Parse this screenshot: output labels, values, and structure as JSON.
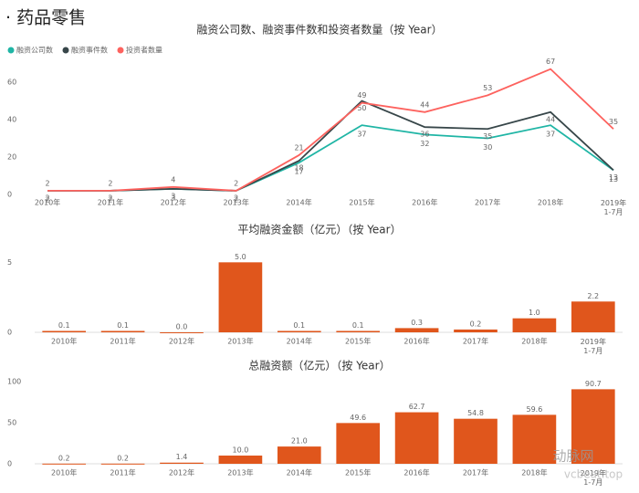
{
  "page_title": "· 药品零售",
  "chart_data": [
    {
      "type": "line",
      "title": "融资公司数、融资事件数和投资者数量（按 Year）",
      "categories": [
        "2010年",
        "2011年",
        "2012年",
        "2013年",
        "2014年",
        "2015年",
        "2016年",
        "2017年",
        "2018年",
        "2019年\n1-7月"
      ],
      "series": [
        {
          "name": "融资公司数",
          "color": "#1fb5a5",
          "values": [
            2,
            2,
            3,
            2,
            17,
            37,
            32,
            30,
            37,
            13
          ]
        },
        {
          "name": "融资事件数",
          "color": "#374649",
          "values": [
            2,
            2,
            3,
            2,
            18,
            50,
            36,
            35,
            44,
            13
          ]
        },
        {
          "name": "投资者数量",
          "color": "#fd625e",
          "values": [
            2,
            2,
            4,
            2,
            21,
            49,
            44,
            53,
            67,
            35
          ]
        }
      ],
      "ylim": [
        0,
        70
      ],
      "yticks": [
        0,
        20,
        40,
        60
      ]
    },
    {
      "type": "bar",
      "title": "平均融资金额（亿元）（按 Year）",
      "categories": [
        "2010年",
        "2011年",
        "2012年",
        "2013年",
        "2014年",
        "2015年",
        "2016年",
        "2017年",
        "2018年",
        "2019年\n1-7月"
      ],
      "values": [
        0.1,
        0.1,
        0.0,
        5.0,
        0.1,
        0.1,
        0.3,
        0.2,
        1.0,
        2.2
      ],
      "value_labels": [
        "0.1",
        "0.1",
        "0.0",
        "5.0",
        "0.1",
        "0.1",
        "0.3",
        "0.2",
        "1.0",
        "2.2"
      ],
      "color": "#e0561c",
      "ylim": [
        0,
        6
      ],
      "yticks": [
        0,
        5
      ]
    },
    {
      "type": "bar",
      "title": "总融资额（亿元）（按 Year）",
      "categories": [
        "2010年",
        "2011年",
        "2012年",
        "2013年",
        "2014年",
        "2015年",
        "2016年",
        "2017年",
        "2018年",
        "2019年\n1-7月"
      ],
      "values": [
        0.2,
        0.2,
        1.4,
        10.0,
        21.0,
        49.6,
        62.7,
        54.8,
        59.6,
        90.7
      ],
      "value_labels": [
        "0.2",
        "0.2",
        "1.4",
        "10.0",
        "21.0",
        "49.6",
        "62.7",
        "54.8",
        "59.6",
        "90.7"
      ],
      "color": "#e0561c",
      "ylim": [
        0,
        100
      ],
      "yticks": [
        0,
        50,
        100
      ]
    }
  ],
  "watermark": [
    "动脉网",
    "vcbeat.top"
  ]
}
